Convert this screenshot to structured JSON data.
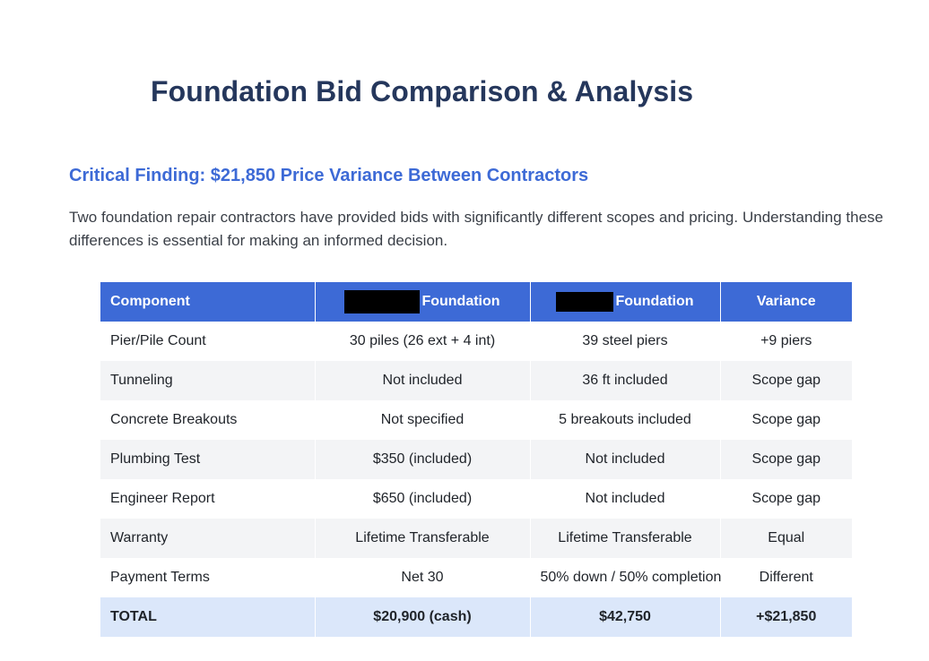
{
  "document": {
    "title": "Foundation Bid Comparison & Analysis",
    "section_heading": "Critical Finding: $21,850 Price Variance Between Contractors",
    "intro": "Two foundation repair contractors have provided bids with significantly different scopes and pricing. Understanding these differences is essential for making an informed decision."
  },
  "table": {
    "headers": {
      "component": "Component",
      "contractor_a": "Foundation",
      "contractor_b": "Foundation",
      "variance": "Variance"
    },
    "rows": [
      {
        "component": "Pier/Pile Count",
        "a": "30 piles (26 ext + 4 int)",
        "b": "39 steel piers",
        "variance": "+9 piers"
      },
      {
        "component": "Tunneling",
        "a": "Not included",
        "b": "36 ft included",
        "variance": "Scope gap"
      },
      {
        "component": "Concrete Breakouts",
        "a": "Not specified",
        "b": "5 breakouts included",
        "variance": "Scope gap"
      },
      {
        "component": "Plumbing Test",
        "a": "$350 (included)",
        "b": "Not included",
        "variance": "Scope gap"
      },
      {
        "component": "Engineer Report",
        "a": "$650 (included)",
        "b": "Not included",
        "variance": "Scope gap"
      },
      {
        "component": "Warranty",
        "a": "Lifetime Transferable",
        "b": "Lifetime Transferable",
        "variance": "Equal"
      },
      {
        "component": "Payment Terms",
        "a": "Net 30",
        "b": "50% down / 50% completion",
        "variance": "Different"
      }
    ],
    "total": {
      "component": "TOTAL",
      "a": "$20,900 (cash)",
      "b": "$42,750",
      "variance": "+$21,850"
    }
  }
}
